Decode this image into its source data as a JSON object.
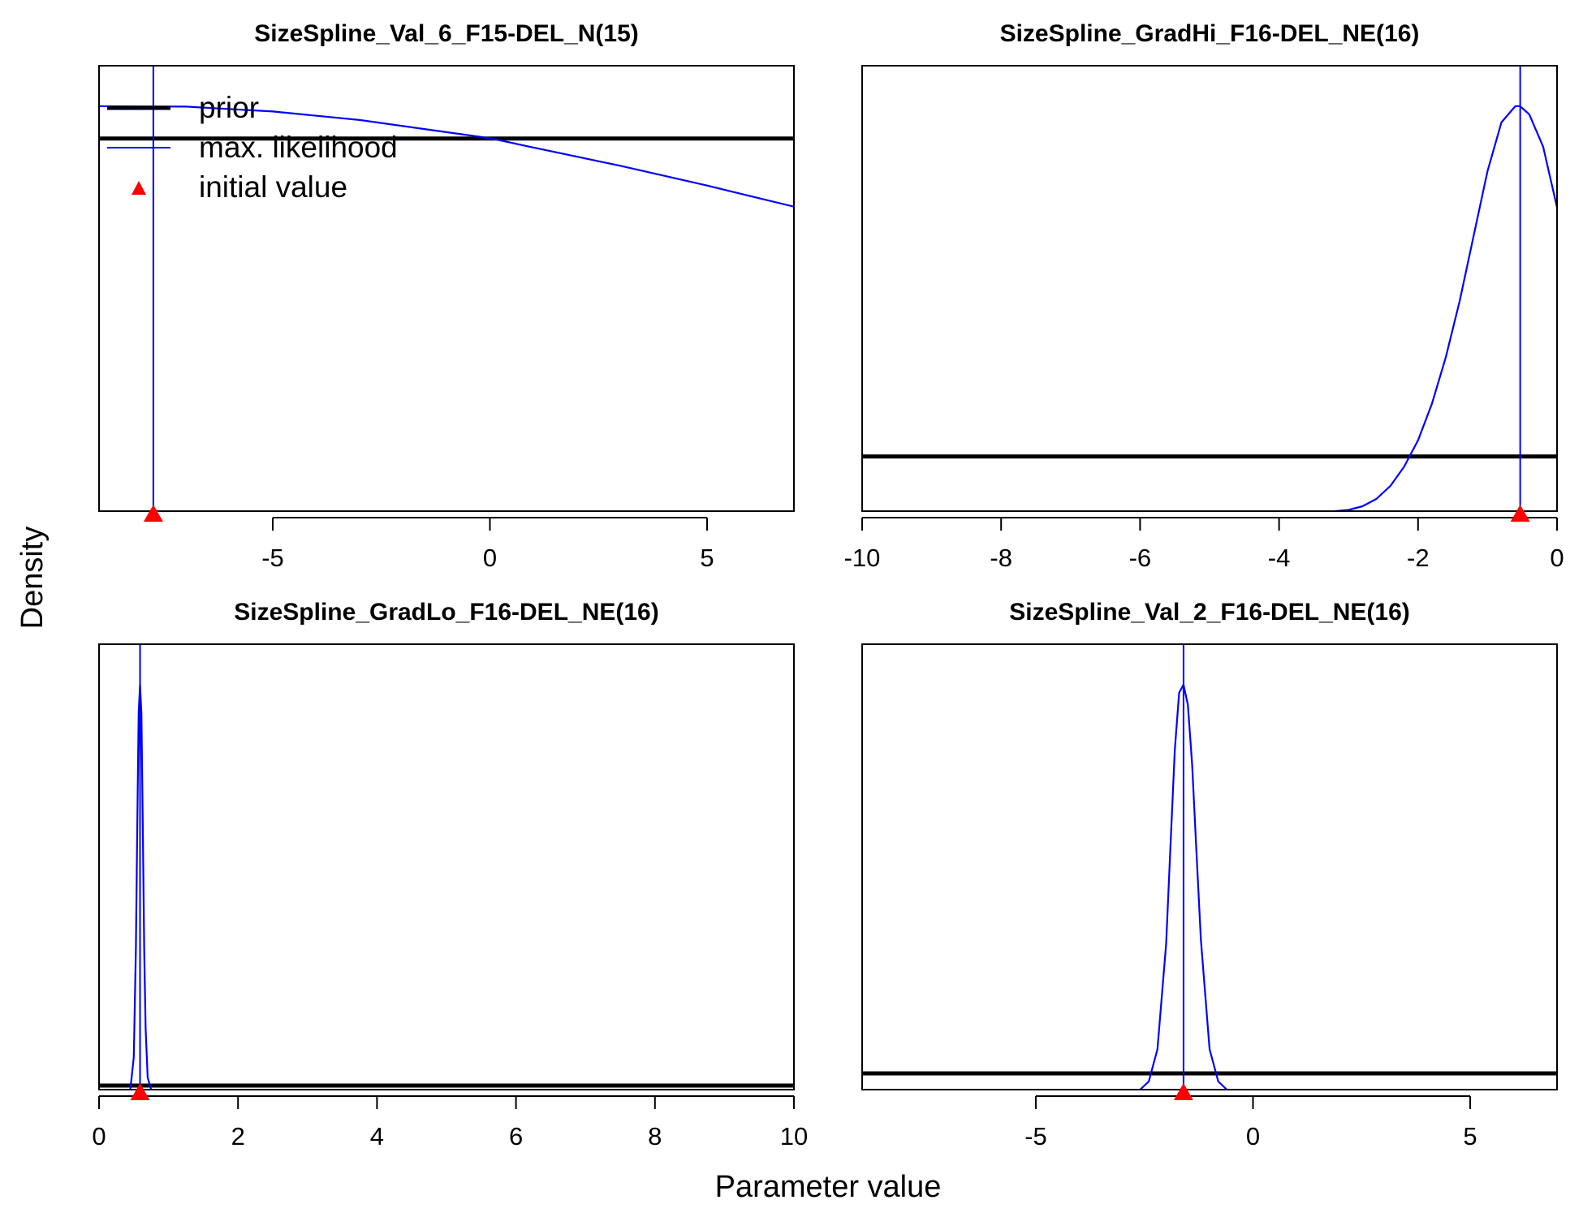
{
  "figure": {
    "xlabel": "Parameter value",
    "ylabel": "Density",
    "legend": {
      "placement": "top-left of first panel",
      "items": [
        {
          "label": "prior",
          "color": "#000000",
          "kind": "thick-line"
        },
        {
          "label": "max. likelihood",
          "color": "#0000FF",
          "kind": "line"
        },
        {
          "label": "initial value",
          "color": "#FF0000",
          "kind": "triangle"
        }
      ]
    }
  },
  "chart_data": [
    {
      "type": "line",
      "title": "SizeSpline_Val_6_F15-DEL_N(15)",
      "xlim": [
        -9,
        7
      ],
      "ylim": [
        0,
        1.1
      ],
      "xticks": [
        -5,
        0,
        5
      ],
      "xtick_labels": [
        "-5",
        "0",
        "5"
      ],
      "series": [
        {
          "name": "prior",
          "color": "#000000",
          "x": [
            -9,
            7
          ],
          "y": [
            0.92,
            0.92
          ]
        },
        {
          "name": "max. likelihood",
          "color": "#0000FF",
          "x": [
            -9,
            -7,
            -5,
            -3,
            -1,
            0,
            1,
            3,
            5,
            7
          ],
          "y": [
            1.0,
            0.999,
            0.987,
            0.966,
            0.936,
            0.921,
            0.898,
            0.853,
            0.804,
            0.752
          ]
        }
      ],
      "mle": -7.75,
      "initial_value": -7.75,
      "show_legend": true
    },
    {
      "type": "line",
      "title": "SizeSpline_GradHi_F16-DEL_NE(16)",
      "xlim": [
        -10,
        0
      ],
      "ylim": [
        0,
        1.1
      ],
      "xticks": [
        -10,
        -8,
        -6,
        -4,
        -2,
        0
      ],
      "xtick_labels": [
        "-10",
        "-8",
        "-6",
        "-4",
        "-2",
        "0"
      ],
      "series": [
        {
          "name": "prior",
          "color": "#000000",
          "x": [
            -10,
            0
          ],
          "y": [
            0.135,
            0.135
          ]
        },
        {
          "name": "max. likelihood",
          "color": "#0000FF",
          "x": [
            -3.2,
            -3.0,
            -2.8,
            -2.6,
            -2.4,
            -2.2,
            -2.0,
            -1.8,
            -1.6,
            -1.4,
            -1.2,
            -1.0,
            -0.8,
            -0.6,
            -0.53,
            -0.4,
            -0.2,
            0.0
          ],
          "y": [
            0.0,
            0.003,
            0.012,
            0.03,
            0.062,
            0.11,
            0.175,
            0.265,
            0.38,
            0.52,
            0.68,
            0.84,
            0.96,
            1.0,
            1.0,
            0.98,
            0.9,
            0.75
          ]
        }
      ],
      "mle": -0.53,
      "initial_value": -0.53,
      "show_legend": false
    },
    {
      "type": "line",
      "title": "SizeSpline_GradLo_F16-DEL_NE(16)",
      "xlim": [
        0,
        10
      ],
      "ylim": [
        0,
        1.1
      ],
      "xticks": [
        0,
        2,
        4,
        6,
        8,
        10
      ],
      "xtick_labels": [
        "0",
        "2",
        "4",
        "6",
        "8",
        "10"
      ],
      "series": [
        {
          "name": "prior",
          "color": "#000000",
          "x": [
            0,
            10
          ],
          "y": [
            0.01,
            0.01
          ]
        },
        {
          "name": "max. likelihood",
          "color": "#0000FF",
          "x": [
            0.45,
            0.5,
            0.53,
            0.55,
            0.57,
            0.59,
            0.61,
            0.63,
            0.65,
            0.67,
            0.7,
            0.75
          ],
          "y": [
            0.0,
            0.08,
            0.35,
            0.65,
            0.93,
            1.0,
            0.93,
            0.65,
            0.35,
            0.15,
            0.03,
            0.0
          ]
        }
      ],
      "mle": 0.59,
      "initial_value": 0.59,
      "show_legend": false
    },
    {
      "type": "line",
      "title": "SizeSpline_Val_2_F16-DEL_NE(16)",
      "xlim": [
        -9,
        7
      ],
      "ylim": [
        0,
        1.1
      ],
      "xticks": [
        -5,
        0,
        5
      ],
      "xtick_labels": [
        "-5",
        "0",
        "5"
      ],
      "series": [
        {
          "name": "prior",
          "color": "#000000",
          "x": [
            -9,
            7
          ],
          "y": [
            0.04,
            0.04
          ]
        },
        {
          "name": "max. likelihood",
          "color": "#0000FF",
          "x": [
            -2.6,
            -2.4,
            -2.2,
            -2.0,
            -1.9,
            -1.8,
            -1.7,
            -1.6,
            -1.5,
            -1.4,
            -1.3,
            -1.2,
            -1.0,
            -0.8,
            -0.6
          ],
          "y": [
            0.0,
            0.02,
            0.1,
            0.36,
            0.6,
            0.84,
            0.98,
            1.0,
            0.95,
            0.8,
            0.58,
            0.37,
            0.1,
            0.02,
            0.0
          ]
        }
      ],
      "mle": -1.6,
      "initial_value": -1.6,
      "show_legend": false
    }
  ]
}
